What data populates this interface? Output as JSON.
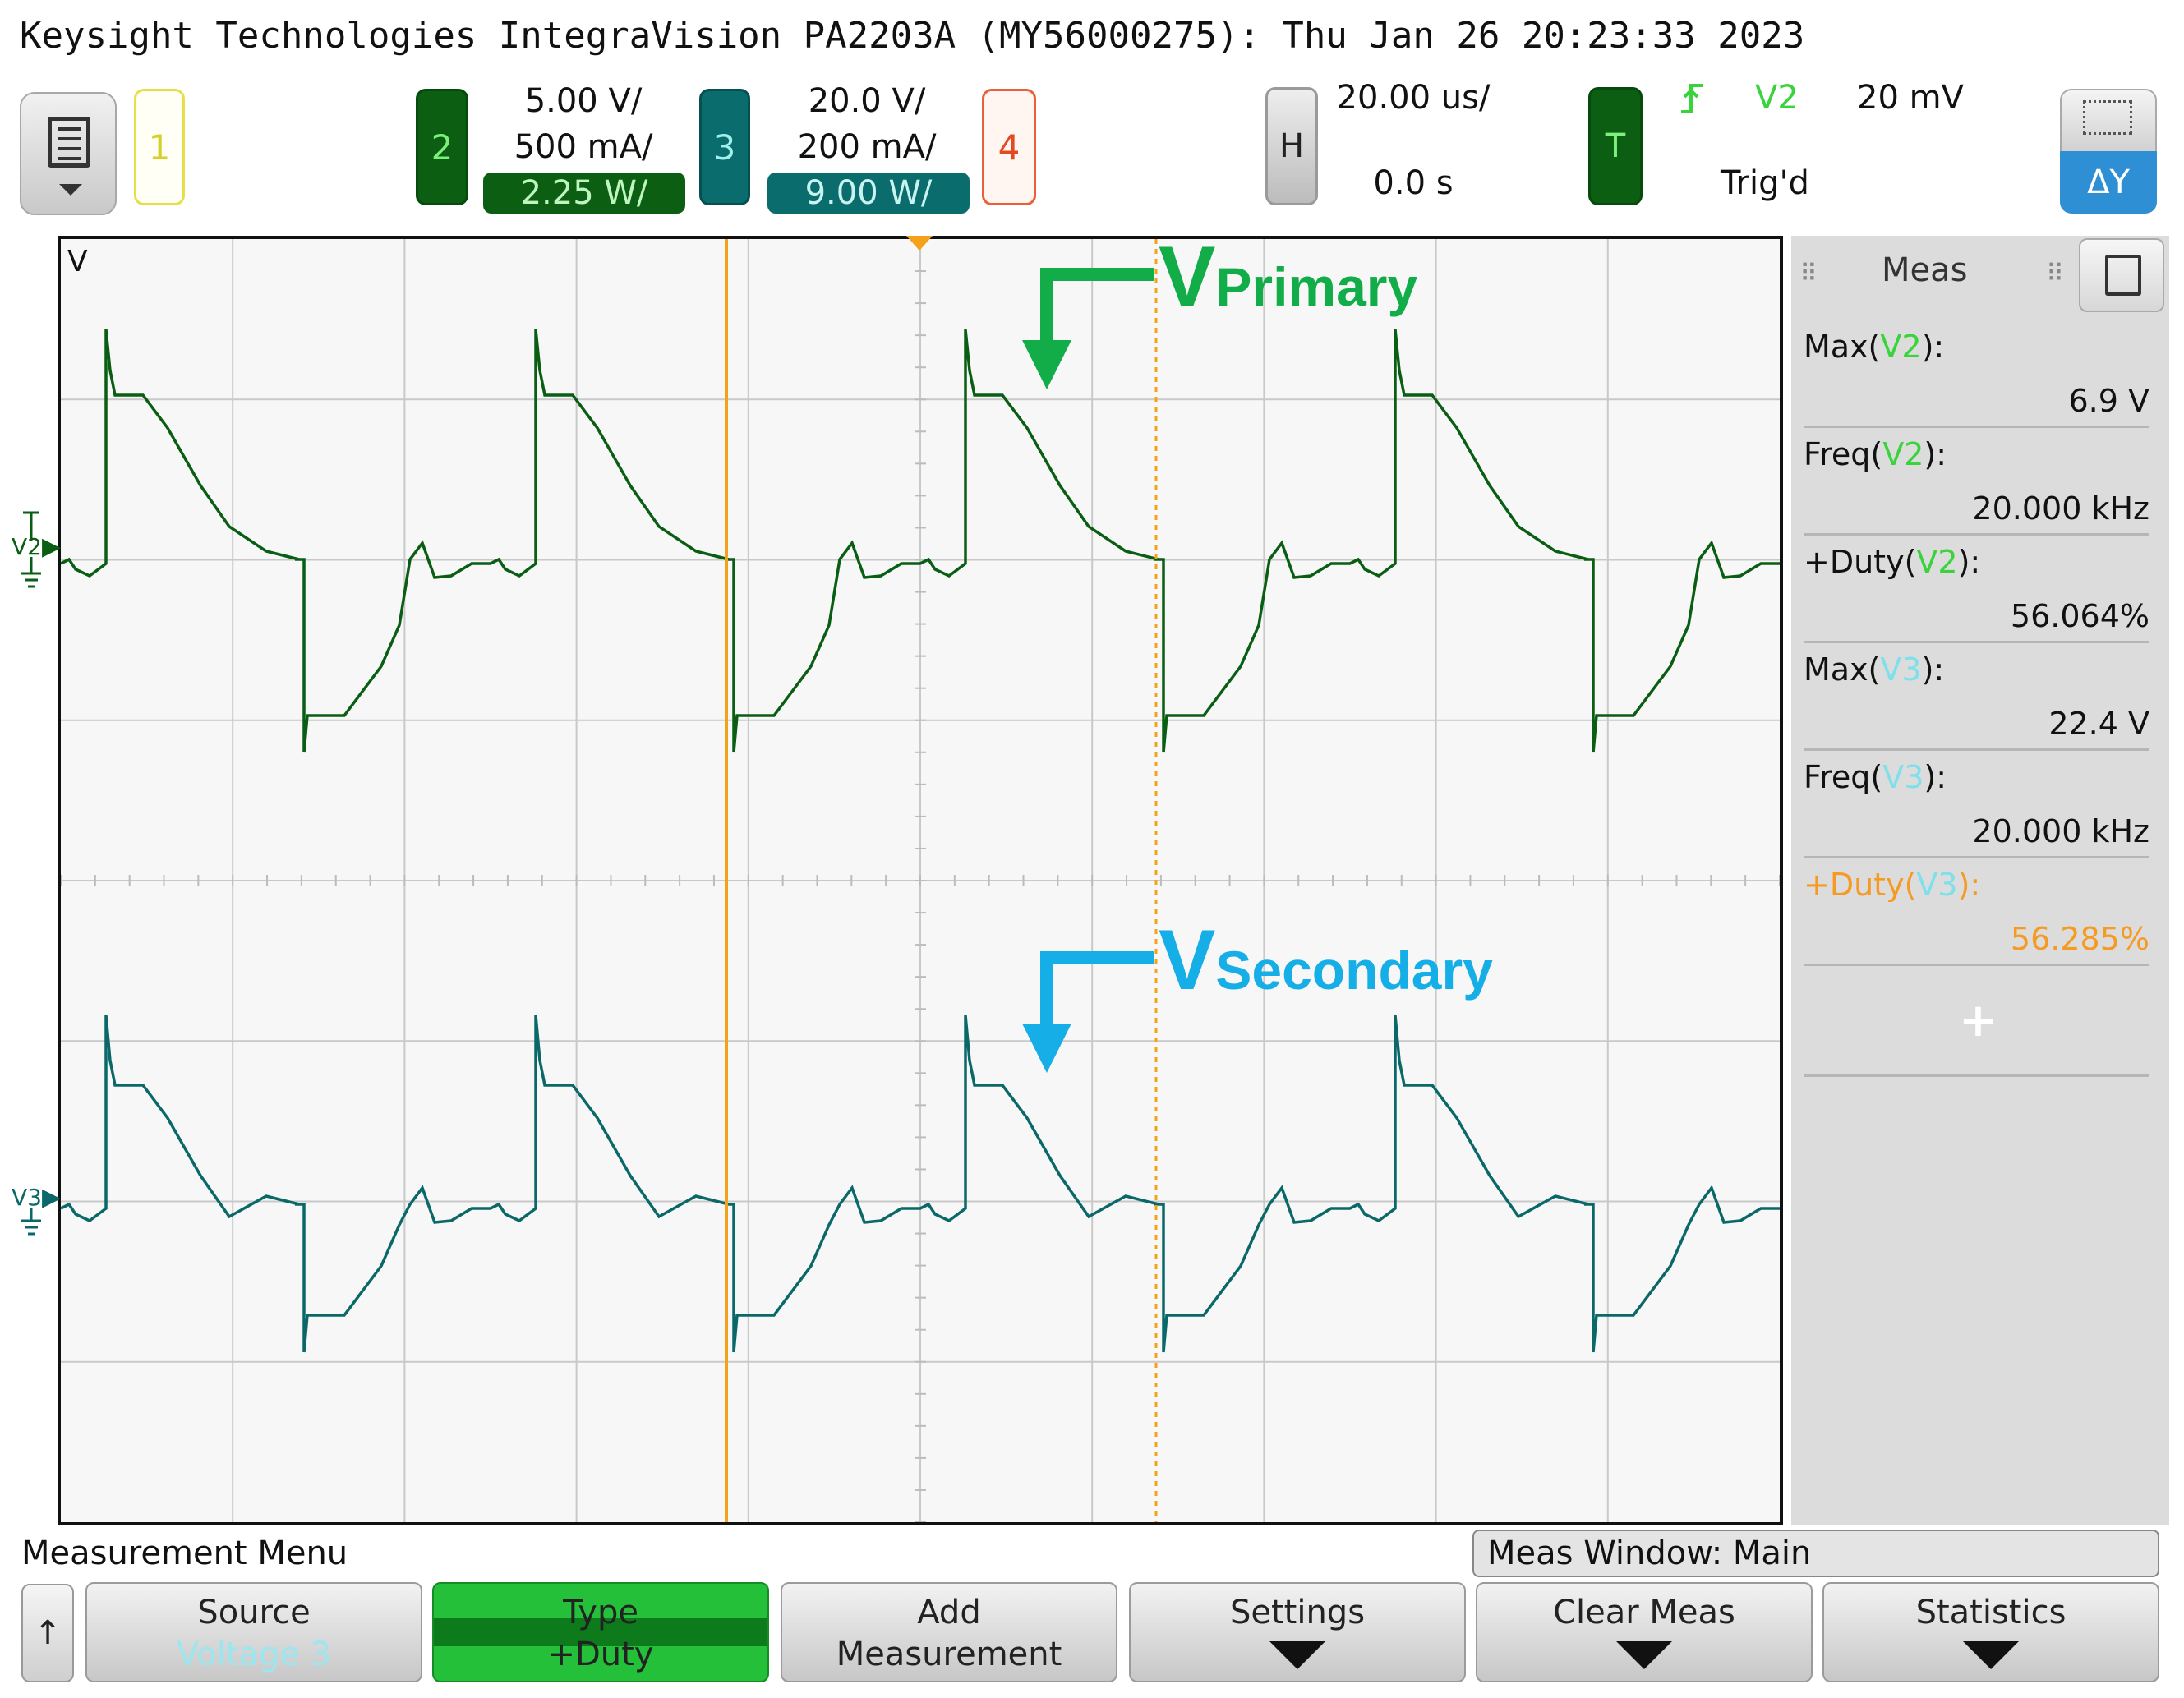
{
  "title": "Keysight Technologies IntegraVision PA2203A (MY56000275): Thu Jan 26 20:23:33 2023",
  "channels": {
    "ch1": {
      "label": "1"
    },
    "ch2": {
      "label": "2",
      "scale_v": "5.00 V/",
      "scale_a": "500 mA/",
      "scale_w": "2.25 W/"
    },
    "ch3": {
      "label": "3",
      "scale_v": "20.0 V/",
      "scale_a": "200 mA/",
      "scale_w": "9.00 W/"
    },
    "ch4": {
      "label": "4"
    }
  },
  "horizontal": {
    "label": "H",
    "timebase": "20.00 us/",
    "delay": "0.0 s"
  },
  "trigger": {
    "label": "T",
    "source": "V2",
    "level": "20 mV",
    "status": "Trig'd"
  },
  "graticule": {
    "axis_label": "V",
    "ch_marker_v2": "V2",
    "ch_marker_v3": "V3"
  },
  "annotations": {
    "primary_main": "V",
    "primary_sub": "Primary",
    "secondary_main": "V",
    "secondary_sub": "Secondary"
  },
  "meas_panel": {
    "title": "Meas",
    "rows": [
      {
        "prefix": "Max(",
        "src": "V2",
        "suffix": "):",
        "value": "6.9 V",
        "src_color": "g"
      },
      {
        "prefix": "Freq(",
        "src": "V2",
        "suffix": "):",
        "value": "20.000 kHz",
        "src_color": "g"
      },
      {
        "prefix": "+Duty(",
        "src": "V2",
        "suffix": "):",
        "value": "56.064%",
        "src_color": "g"
      },
      {
        "prefix": "Max(",
        "src": "V3",
        "suffix": "):",
        "value": "22.4 V",
        "src_color": "c"
      },
      {
        "prefix": "Freq(",
        "src": "V3",
        "suffix": "):",
        "value": "20.000 kHz",
        "src_color": "c"
      },
      {
        "prefix": "+Duty(",
        "src": "V3",
        "suffix": "):",
        "value": "56.285%",
        "src_color": "c"
      }
    ],
    "add": "+"
  },
  "softkeys": {
    "menu_title": "Measurement Menu",
    "meas_window": "Meas Window: Main",
    "up": "↑",
    "source": {
      "l1": "Source",
      "l2": "Voltage 3"
    },
    "type": {
      "l1": "Type",
      "l2": "+Duty"
    },
    "add": {
      "l1": "Add",
      "l2": "Measurement"
    },
    "settings": {
      "l1": "Settings"
    },
    "clear": {
      "l1": "Clear Meas"
    },
    "statistics": {
      "l1": "Statistics"
    }
  },
  "colors": {
    "v2_trace": "#0a5e14",
    "v3_trace": "#0b6868",
    "cursor": "#f3a21a",
    "primary_annot": "#12ad48",
    "secondary_annot": "#16aee6"
  }
}
